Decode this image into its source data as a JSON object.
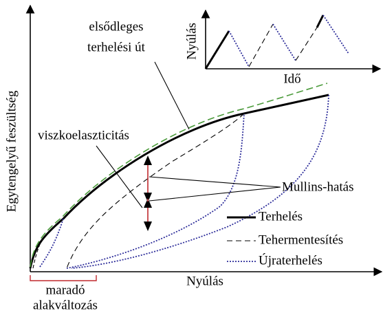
{
  "primary_path_label": [
    "elsődleges",
    "terhelési út"
  ],
  "inset": {
    "y_label": "Nyúlás",
    "x_label": "Idő"
  },
  "y_axis_label": "Egytengelyű feszültség",
  "x_axis_label": "Nyúlás",
  "annotations": {
    "viscoelasticity": "viszkoelaszticitás",
    "mullins": "Mullins-hatás",
    "residual": [
      "maradó",
      "alakváltozás"
    ]
  },
  "legend": [
    "Terhelés",
    "Tehermentesítés",
    "Újraterhelés"
  ]
}
